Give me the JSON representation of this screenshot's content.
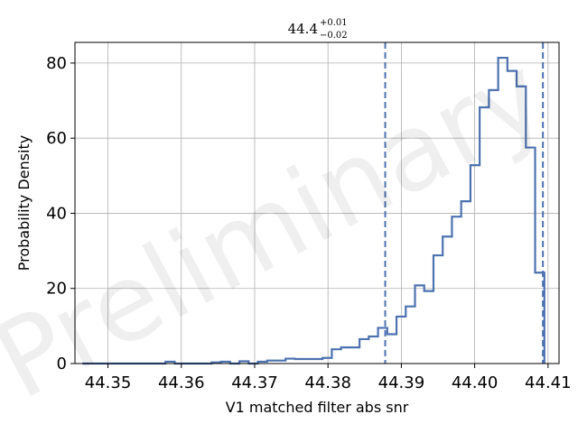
{
  "chart_data": {
    "type": "histogram",
    "title": {
      "base": "44.4",
      "upper": "+0.01",
      "lower": "−0.02"
    },
    "xlabel": "V1 matched filter abs snr",
    "ylabel": "Probability Density",
    "watermark": "Preliminary",
    "xlim": [
      44.3455,
      44.4115
    ],
    "ylim": [
      0,
      85.5
    ],
    "x_ticks": [
      44.35,
      44.36,
      44.37,
      44.38,
      44.39,
      44.4,
      44.41
    ],
    "x_tick_labels": [
      "44.35",
      "44.36",
      "44.37",
      "44.38",
      "44.39",
      "44.40",
      "44.41"
    ],
    "y_ticks": [
      0,
      20,
      40,
      60,
      80
    ],
    "y_tick_labels": [
      "0",
      "20",
      "40",
      "60",
      "80"
    ],
    "grid": true,
    "bins": {
      "start": 44.3465,
      "width": 0.00126,
      "values": [
        0,
        0,
        0,
        0,
        0,
        0,
        0,
        0,
        0,
        0.5,
        0,
        0,
        0,
        0,
        0.3,
        0.5,
        0,
        0.6,
        0,
        0.5,
        0.8,
        0.8,
        1.3,
        1.2,
        1.2,
        1.2,
        1.5,
        3.8,
        4.3,
        4.3,
        6.5,
        7.2,
        9.5,
        7.8,
        12.5,
        15.2,
        20.8,
        19.3,
        28.8,
        33.8,
        39.1,
        43.2,
        52.8,
        68.2,
        72.8,
        81.4,
        77.9,
        73.8,
        57.5,
        24.2
      ]
    },
    "series_color": "#4C72B0",
    "credible_interval_lines": [
      44.3878,
      44.4093
    ]
  }
}
